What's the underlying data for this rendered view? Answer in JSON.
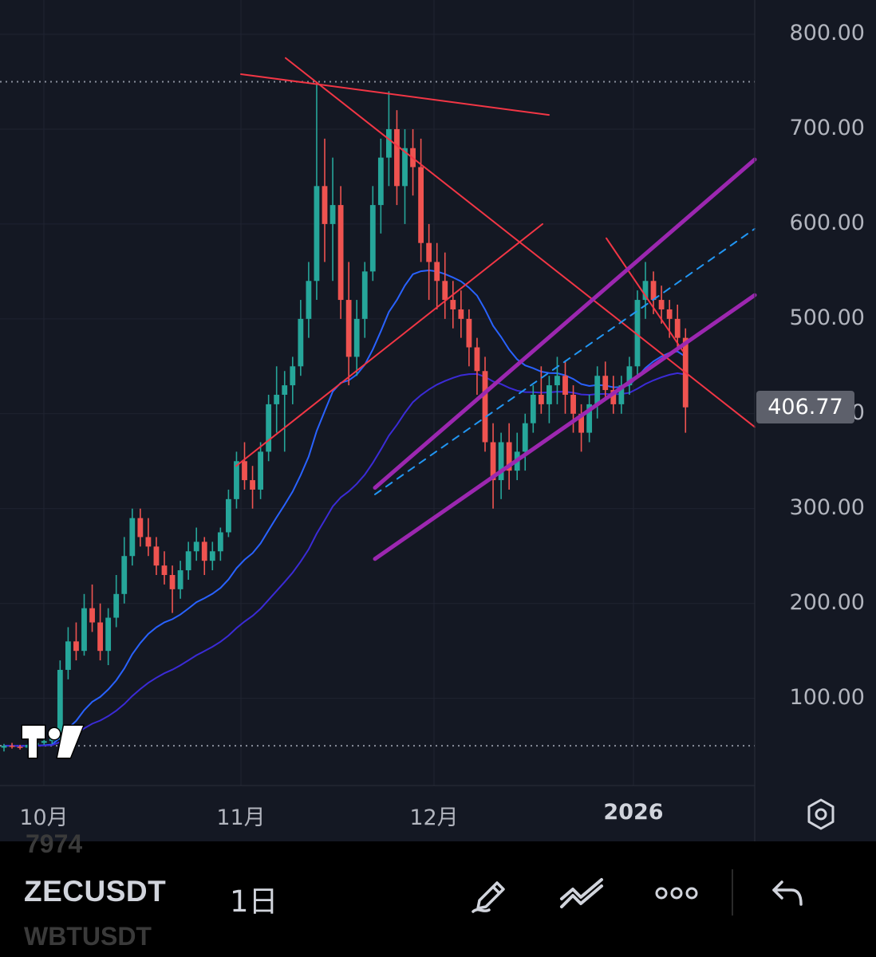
{
  "price_axis": [
    "800.00",
    "700.00",
    "600.00",
    "500.00",
    "400.00",
    "300.00",
    "200.00",
    "100.00"
  ],
  "last_price": "406.77",
  "time_axis": [
    {
      "label": "10月",
      "bold": false
    },
    {
      "label": "11月",
      "bold": false
    },
    {
      "label": "12月",
      "bold": false
    },
    {
      "label": "2026",
      "bold": true
    }
  ],
  "toolbar": {
    "symbol": "ZECUSDT",
    "interval": "1日",
    "ghost_top": "7974",
    "ghost_bottom": "WBTUSDT"
  },
  "colors": {
    "background": "#141823",
    "up": "#26a69a",
    "down": "#ef5350",
    "trendline": "#f23645",
    "channel": "#9c27b0",
    "ma_fast": "#2962ff",
    "ma_slow": "#3b2bd6",
    "dashed_mid": "#2196f3"
  },
  "chart_data": {
    "type": "candlestick",
    "symbol": "ZECUSDT",
    "interval": "1日",
    "ylim": [
      0,
      825
    ],
    "y_ticks": [
      100,
      200,
      300,
      400,
      500,
      600,
      700,
      800
    ],
    "x_labels": [
      "10月",
      "11月",
      "12月",
      "2026"
    ],
    "last_price": 406.77,
    "horizontal_levels": [
      750,
      50
    ],
    "candles": [
      [
        48,
        52,
        44,
        50
      ],
      [
        50,
        53,
        47,
        49
      ],
      [
        49,
        51,
        46,
        48
      ],
      [
        48,
        52,
        46,
        51
      ],
      [
        51,
        55,
        49,
        53
      ],
      [
        53,
        57,
        51,
        55
      ],
      [
        55,
        60,
        52,
        58
      ],
      [
        58,
        140,
        56,
        130
      ],
      [
        130,
        175,
        120,
        160
      ],
      [
        160,
        180,
        140,
        150
      ],
      [
        150,
        210,
        145,
        195
      ],
      [
        195,
        220,
        170,
        180
      ],
      [
        180,
        200,
        140,
        150
      ],
      [
        150,
        195,
        135,
        185
      ],
      [
        185,
        230,
        175,
        210
      ],
      [
        210,
        270,
        200,
        250
      ],
      [
        250,
        300,
        240,
        290
      ],
      [
        290,
        300,
        260,
        270
      ],
      [
        270,
        290,
        250,
        260
      ],
      [
        260,
        270,
        230,
        240
      ],
      [
        240,
        255,
        220,
        230
      ],
      [
        230,
        240,
        190,
        215
      ],
      [
        215,
        245,
        205,
        235
      ],
      [
        235,
        265,
        225,
        255
      ],
      [
        255,
        280,
        245,
        265
      ],
      [
        265,
        270,
        230,
        245
      ],
      [
        245,
        265,
        235,
        255
      ],
      [
        255,
        280,
        245,
        275
      ],
      [
        275,
        320,
        270,
        310
      ],
      [
        310,
        360,
        300,
        350
      ],
      [
        350,
        370,
        320,
        330
      ],
      [
        330,
        345,
        300,
        320
      ],
      [
        320,
        370,
        310,
        360
      ],
      [
        360,
        420,
        350,
        410
      ],
      [
        410,
        450,
        380,
        420
      ],
      [
        420,
        445,
        360,
        430
      ],
      [
        430,
        460,
        410,
        450
      ],
      [
        450,
        520,
        440,
        500
      ],
      [
        500,
        560,
        480,
        540
      ],
      [
        540,
        750,
        520,
        640
      ],
      [
        640,
        690,
        560,
        600
      ],
      [
        600,
        670,
        540,
        620
      ],
      [
        620,
        640,
        500,
        520
      ],
      [
        520,
        560,
        430,
        460
      ],
      [
        460,
        520,
        440,
        500
      ],
      [
        500,
        560,
        480,
        550
      ],
      [
        550,
        640,
        540,
        620
      ],
      [
        620,
        690,
        590,
        670
      ],
      [
        670,
        740,
        640,
        700
      ],
      [
        700,
        720,
        620,
        640
      ],
      [
        640,
        700,
        600,
        680
      ],
      [
        680,
        700,
        630,
        660
      ],
      [
        660,
        690,
        560,
        580
      ],
      [
        580,
        600,
        520,
        560
      ],
      [
        560,
        580,
        510,
        540
      ],
      [
        540,
        570,
        500,
        520
      ],
      [
        520,
        540,
        490,
        510
      ],
      [
        510,
        530,
        480,
        500
      ],
      [
        500,
        510,
        450,
        470
      ],
      [
        470,
        480,
        420,
        445
      ],
      [
        445,
        460,
        360,
        370
      ],
      [
        370,
        390,
        300,
        330
      ],
      [
        330,
        380,
        310,
        370
      ],
      [
        370,
        390,
        320,
        340
      ],
      [
        340,
        380,
        330,
        360
      ],
      [
        360,
        400,
        340,
        390
      ],
      [
        390,
        430,
        380,
        420
      ],
      [
        420,
        450,
        400,
        410
      ],
      [
        410,
        440,
        390,
        430
      ],
      [
        430,
        460,
        410,
        440
      ],
      [
        440,
        455,
        400,
        420
      ],
      [
        420,
        430,
        380,
        400
      ],
      [
        400,
        410,
        360,
        380
      ],
      [
        380,
        420,
        370,
        410
      ],
      [
        410,
        450,
        395,
        440
      ],
      [
        440,
        455,
        415,
        425
      ],
      [
        425,
        440,
        400,
        410
      ],
      [
        410,
        440,
        400,
        430
      ],
      [
        430,
        460,
        420,
        450
      ],
      [
        450,
        530,
        440,
        520
      ],
      [
        520,
        560,
        500,
        540
      ],
      [
        540,
        550,
        505,
        520
      ],
      [
        520,
        535,
        495,
        510
      ],
      [
        510,
        520,
        480,
        500
      ],
      [
        500,
        515,
        470,
        480
      ],
      [
        480,
        490,
        380,
        406.77
      ]
    ]
  }
}
